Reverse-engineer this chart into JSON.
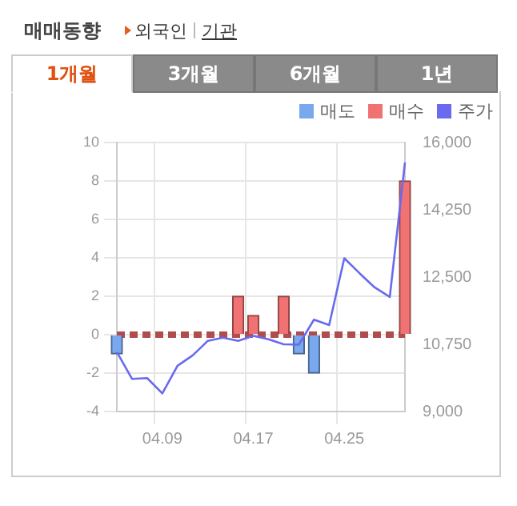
{
  "chart_data": {
    "type": "bar",
    "title": "매매동향",
    "annotations": [
      "외국인",
      "기관",
      "1개월",
      "3개월",
      "6개월",
      "1년"
    ],
    "categories": [
      null,
      null,
      null,
      "04.09",
      null,
      null,
      null,
      null,
      null,
      "04.17",
      null,
      null,
      null,
      null,
      null,
      "04.25",
      null,
      null,
      null,
      null
    ],
    "series": [
      {
        "name": "매도",
        "color": "#7aa8ee",
        "values": [
          -1,
          0,
          0,
          0,
          0,
          0,
          0,
          0,
          0,
          0,
          0,
          0,
          -1,
          -2,
          0,
          0,
          0,
          0,
          0,
          0
        ]
      },
      {
        "name": "매수",
        "color": "#f07272",
        "values": [
          0,
          0,
          0,
          0,
          0,
          0,
          0,
          0,
          2,
          1,
          0,
          2,
          0,
          0,
          0,
          0,
          0,
          0,
          0,
          8
        ]
      },
      {
        "name": "주가",
        "type": "line",
        "axis": "y2",
        "color": "#6a6af0",
        "values": [
          10550,
          9850,
          9870,
          9470,
          10190,
          10460,
          10840,
          10920,
          10840,
          10970,
          10880,
          10750,
          10740,
          11390,
          11250,
          12990,
          12600,
          12230,
          11980,
          15480
        ]
      }
    ],
    "ylim": [
      -4,
      10
    ],
    "yticks": [
      -4,
      -2,
      0,
      2,
      4,
      6,
      8,
      10
    ],
    "y2lim": [
      9000,
      16000
    ],
    "y2ticks": [
      {
        "value": 9000,
        "label": "9,000"
      },
      {
        "value": 10750,
        "label": "10,750"
      },
      {
        "value": 12500,
        "label": "12,500"
      },
      {
        "value": 14250,
        "label": "14,250"
      },
      {
        "value": 16000,
        "label": "16,000"
      }
    ],
    "ref_lines": [
      {
        "axis": "y",
        "value": 0,
        "color": "#b04c4c",
        "line_style": "dashed"
      }
    ],
    "grid": true,
    "legend": "top right",
    "stacked": true
  }
}
